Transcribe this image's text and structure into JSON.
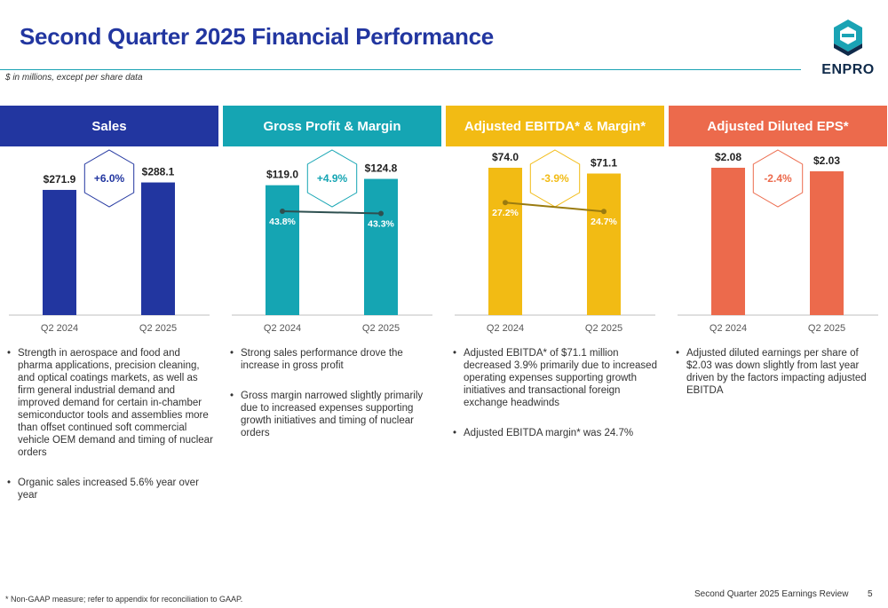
{
  "header": {
    "title": "Second Quarter 2025 Financial Performance",
    "subtitle": "$ in millions, except per share data",
    "logo_text": "ENPRO"
  },
  "colors": {
    "title": "#2236a0",
    "rule": "#1aa3b4",
    "logo_teal": "#1aa3b4",
    "logo_navy": "#0f2a4a"
  },
  "chart_data": [
    {
      "type": "bar",
      "title": "Sales",
      "color": "#2236a0",
      "categories": [
        "Q2 2024",
        "Q2 2025"
      ],
      "values": [
        271.9,
        288.1
      ],
      "value_labels": [
        "$271.9",
        "$288.1"
      ],
      "change_label": "+6.0%",
      "ylim": [
        0,
        320
      ]
    },
    {
      "type": "bar",
      "title": "Gross Profit & Margin",
      "color": "#15a5b3",
      "categories": [
        "Q2 2024",
        "Q2 2025"
      ],
      "values": [
        119.0,
        124.8
      ],
      "value_labels": [
        "$119.0",
        "$124.8"
      ],
      "change_label": "+4.9%",
      "ylim": [
        0,
        135
      ],
      "line": {
        "values": [
          43.8,
          43.3
        ],
        "labels": [
          "43.8%",
          "43.3%"
        ],
        "ylim": [
          40,
          48
        ],
        "color": "#2e5050"
      }
    },
    {
      "type": "bar",
      "title": "Adjusted EBITDA* & Margin*",
      "color": "#f2bb14",
      "categories": [
        "Q2 2024",
        "Q2 2025"
      ],
      "values": [
        74.0,
        71.1
      ],
      "value_labels": [
        "$74.0",
        "$71.1"
      ],
      "change_label": "-3.9%",
      "ylim": [
        0,
        74
      ],
      "line": {
        "values": [
          27.2,
          24.7
        ],
        "labels": [
          "27.2%",
          "24.7%"
        ],
        "ylim": [
          20,
          30
        ],
        "color": "#9a7b10"
      }
    },
    {
      "type": "bar",
      "title": "Adjusted Diluted EPS*",
      "color": "#ec6a4c",
      "categories": [
        "Q2 2024",
        "Q2 2025"
      ],
      "values": [
        2.08,
        2.03
      ],
      "value_labels": [
        "$2.08",
        "$2.03"
      ],
      "change_label": "-2.4%",
      "ylim": [
        0,
        2.08
      ]
    }
  ],
  "panels": [
    {
      "header": "Sales",
      "bullets": [
        "Strength in aerospace and food and pharma applications, precision cleaning, and optical coatings markets, as well as firm general industrial demand and improved demand for certain in-chamber semiconductor tools and assemblies more than offset continued soft commercial vehicle OEM demand and timing of nuclear orders",
        "Organic sales increased 5.6% year over year"
      ]
    },
    {
      "header": "Gross Profit & Margin",
      "bullets": [
        "Strong sales performance drove the increase in gross profit",
        "Gross margin narrowed slightly primarily due to increased expenses supporting growth initiatives and timing of nuclear orders"
      ]
    },
    {
      "header": "Adjusted EBITDA* & Margin*",
      "bullets": [
        "Adjusted EBITDA* of $71.1 million decreased 3.9% primarily due to increased operating expenses supporting growth initiatives and transactional foreign exchange headwinds",
        "Adjusted EBITDA margin* was 24.7%"
      ]
    },
    {
      "header": "Adjusted Diluted EPS*",
      "bullets": [
        "Adjusted diluted earnings per share of $2.03 was down slightly from last year driven by the factors impacting adjusted EBITDA"
      ]
    }
  ],
  "footer": {
    "footnote": "* Non-GAAP measure; refer to appendix for reconciliation to GAAP.",
    "deck_title": "Second Quarter 2025 Earnings Review",
    "page_number": "5"
  }
}
